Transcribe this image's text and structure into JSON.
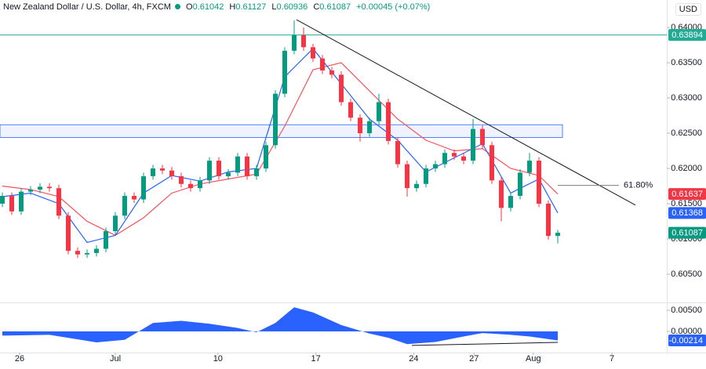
{
  "chart_data": {
    "type": "candlestick",
    "header": {
      "symbol": "New Zealand Dollar / U.S. Dollar, 4h, FXCM",
      "open_key": "O",
      "open": "0.61042",
      "high_key": "H",
      "high": "0.61127",
      "low_key": "L",
      "low": "0.60936",
      "close_key": "C",
      "close": "0.61087",
      "change": "+0.00045 (+0.07%)"
    },
    "currency": "USD",
    "up_color": "#089981",
    "down_color": "#f23645",
    "x": [
      0,
      1,
      2,
      3,
      4,
      5,
      6,
      7,
      8,
      9,
      10,
      11,
      12,
      13,
      14,
      15,
      16,
      17,
      18,
      19,
      20,
      21,
      22,
      23,
      24,
      25,
      26,
      27,
      28,
      29,
      30,
      31,
      32,
      33,
      34,
      35,
      36,
      37,
      38,
      39,
      40,
      41,
      42,
      43,
      44,
      45,
      46,
      47,
      48,
      49,
      50,
      51,
      52,
      53,
      54,
      55,
      56,
      57,
      58,
      59
    ],
    "open": [
      0.615,
      0.6161,
      0.6139,
      0.6167,
      0.617,
      0.6174,
      0.6172,
      0.6133,
      0.6083,
      0.6078,
      0.608,
      0.6086,
      0.6111,
      0.6133,
      0.6161,
      0.6156,
      0.6189,
      0.62,
      0.6197,
      0.6189,
      0.6178,
      0.6172,
      0.6183,
      0.6211,
      0.6189,
      0.6194,
      0.6217,
      0.6189,
      0.62,
      0.6233,
      0.6306,
      0.6367,
      0.6389,
      0.6372,
      0.6356,
      0.6339,
      0.6333,
      0.6294,
      0.6272,
      0.625,
      0.6267,
      0.6294,
      0.6239,
      0.6206,
      0.6172,
      0.6178,
      0.62,
      0.6206,
      0.6222,
      0.6217,
      0.6211,
      0.6256,
      0.6233,
      0.6183,
      0.6144,
      0.6161,
      0.6194,
      0.6211,
      0.615,
      0.61042
    ],
    "high": [
      0.6166,
      0.6166,
      0.6172,
      0.6175,
      0.6179,
      0.6179,
      0.6177,
      0.6138,
      0.6088,
      0.6085,
      0.6091,
      0.6116,
      0.6138,
      0.6166,
      0.6166,
      0.6194,
      0.6205,
      0.6205,
      0.6202,
      0.6194,
      0.6183,
      0.6188,
      0.6216,
      0.6216,
      0.6199,
      0.6222,
      0.6222,
      0.6205,
      0.6238,
      0.6311,
      0.6372,
      0.641,
      0.64,
      0.6377,
      0.6361,
      0.6344,
      0.6338,
      0.6299,
      0.6277,
      0.6272,
      0.6306,
      0.6299,
      0.6244,
      0.6211,
      0.6183,
      0.6205,
      0.6211,
      0.6227,
      0.6227,
      0.6222,
      0.627,
      0.6261,
      0.6238,
      0.6188,
      0.6166,
      0.6199,
      0.6222,
      0.6216,
      0.6155,
      0.61127
    ],
    "low": [
      0.6145,
      0.6134,
      0.6134,
      0.6162,
      0.6165,
      0.6167,
      0.6128,
      0.6078,
      0.6073,
      0.6073,
      0.6075,
      0.6081,
      0.6106,
      0.6128,
      0.6151,
      0.6151,
      0.6184,
      0.6192,
      0.6184,
      0.6173,
      0.6167,
      0.6167,
      0.6178,
      0.6184,
      0.6184,
      0.6189,
      0.6184,
      0.6184,
      0.6195,
      0.6228,
      0.6301,
      0.6362,
      0.6367,
      0.6351,
      0.6334,
      0.6328,
      0.6289,
      0.6267,
      0.6238,
      0.6245,
      0.6262,
      0.6234,
      0.6201,
      0.616,
      0.6167,
      0.6173,
      0.6195,
      0.6201,
      0.6212,
      0.6206,
      0.6206,
      0.6228,
      0.6178,
      0.6125,
      0.6139,
      0.6156,
      0.6189,
      0.6145,
      0.6099,
      0.60936
    ],
    "close": [
      0.6161,
      0.6139,
      0.6167,
      0.617,
      0.6174,
      0.6172,
      0.6133,
      0.6083,
      0.6078,
      0.608,
      0.6086,
      0.6111,
      0.6133,
      0.6161,
      0.6156,
      0.6189,
      0.62,
      0.6197,
      0.6189,
      0.6178,
      0.6172,
      0.6183,
      0.6211,
      0.6189,
      0.6194,
      0.6217,
      0.6189,
      0.62,
      0.6233,
      0.6306,
      0.6367,
      0.6389,
      0.6372,
      0.6356,
      0.6339,
      0.6333,
      0.6294,
      0.6272,
      0.625,
      0.6267,
      0.6294,
      0.6239,
      0.6206,
      0.6172,
      0.6178,
      0.62,
      0.6206,
      0.6222,
      0.6217,
      0.6211,
      0.6256,
      0.6233,
      0.6183,
      0.6144,
      0.6161,
      0.6194,
      0.6211,
      0.615,
      0.61042,
      0.61087
    ],
    "xlim": [
      -0.25,
      70.58
    ],
    "xticks": [
      {
        "value": 1.83,
        "label": "26"
      },
      {
        "value": 12,
        "label": "Jul"
      },
      {
        "value": 22.9,
        "label": "10"
      },
      {
        "value": 33.3,
        "label": "17"
      },
      {
        "value": 43.7,
        "label": "24"
      },
      {
        "value": 50.1,
        "label": "27"
      },
      {
        "value": 56.4,
        "label": "Aug"
      },
      {
        "value": 64.75,
        "label": "7"
      }
    ],
    "ylim": [
      0.6011,
      0.6439
    ],
    "yticks": [
      {
        "value": 0.64,
        "label": "0.64000"
      },
      {
        "value": 0.635,
        "label": "0.63500"
      },
      {
        "value": 0.63,
        "label": "0.63000"
      },
      {
        "value": 0.625,
        "label": "0.62500"
      },
      {
        "value": 0.62,
        "label": "0.62000"
      },
      {
        "value": 0.615,
        "label": "0.61500"
      },
      {
        "value": 0.61,
        "label": "0.61000"
      },
      {
        "value": 0.605,
        "label": "0.60500"
      }
    ],
    "lines": [
      {
        "color": "#f7525f",
        "x": [
          0,
          3,
          6,
          9,
          12,
          15,
          18,
          21,
          24,
          27,
          30,
          33,
          36,
          39,
          42,
          45,
          48,
          51,
          54,
          57,
          59
        ],
        "values": [
          0.6175,
          0.617,
          0.616,
          0.6125,
          0.6105,
          0.613,
          0.6165,
          0.6178,
          0.6185,
          0.6192,
          0.626,
          0.634,
          0.635,
          0.631,
          0.627,
          0.624,
          0.6225,
          0.6228,
          0.62,
          0.619,
          0.61637
        ]
      },
      {
        "color": "#2962ff",
        "x": [
          0,
          3,
          6,
          9,
          12,
          15,
          18,
          21,
          24,
          27,
          30,
          33,
          36,
          39,
          42,
          45,
          48,
          51,
          54,
          57,
          59
        ],
        "values": [
          0.616,
          0.6165,
          0.615,
          0.6095,
          0.6105,
          0.6165,
          0.619,
          0.6182,
          0.6195,
          0.62,
          0.633,
          0.637,
          0.632,
          0.627,
          0.624,
          0.6195,
          0.6215,
          0.6235,
          0.6165,
          0.6185,
          0.61368
        ]
      }
    ],
    "price_tags": [
      {
        "value": 0.63894,
        "label": "0.63894",
        "color": "#22ab94"
      },
      {
        "value": 0.61637,
        "label": "0.61637",
        "color": "#f23645"
      },
      {
        "value": 0.61368,
        "label": "0.61368",
        "color": "#2962ff"
      },
      {
        "value": 0.61087,
        "label": "0.61087",
        "color": "#089981"
      }
    ],
    "hline": {
      "value": 0.63894,
      "color": "#22ab94"
    },
    "zone": {
      "x": [
        -0.25,
        59.5
      ],
      "y": [
        0.6244,
        0.6262
      ],
      "color": "#2962ff"
    },
    "trendline": {
      "x": [
        31.25,
        67.25
      ],
      "y": [
        0.6411,
        0.6148
      ],
      "color": "#131722"
    },
    "fib": {
      "x": [
        59,
        65.5
      ],
      "value": 0.6176,
      "label": "61.80%",
      "color": "#9c27b0"
    },
    "oscillator": {
      "color": "#2962ff",
      "ylim": [
        -0.005,
        0.00648
      ],
      "yticks": [
        {
          "value": 0.005,
          "label": "0.00500"
        },
        {
          "value": 0,
          "label": "0.00000"
        }
      ],
      "x": [
        0,
        5,
        10,
        13,
        16,
        19,
        22,
        25,
        27,
        29,
        31,
        33,
        36,
        39,
        41,
        43,
        46,
        49,
        51,
        54,
        56,
        59
      ],
      "values": [
        -0.001,
        -0.0008,
        -0.0026,
        -0.002,
        0.002,
        0.0025,
        0.0018,
        0.0008,
        -0.0002,
        0.002,
        0.0057,
        0.0045,
        0.0015,
        -0.0005,
        -0.0015,
        -0.003,
        -0.0025,
        -0.0012,
        -0.0004,
        -0.0008,
        -0.0012,
        -0.00214
      ],
      "tag": {
        "value": -0.00214,
        "label": "-0.00214",
        "color": "#2962ff"
      },
      "trendline": {
        "x": [
          43.5,
          59
        ],
        "y": [
          -0.0033,
          -0.0026
        ],
        "color": "#131722"
      }
    }
  }
}
